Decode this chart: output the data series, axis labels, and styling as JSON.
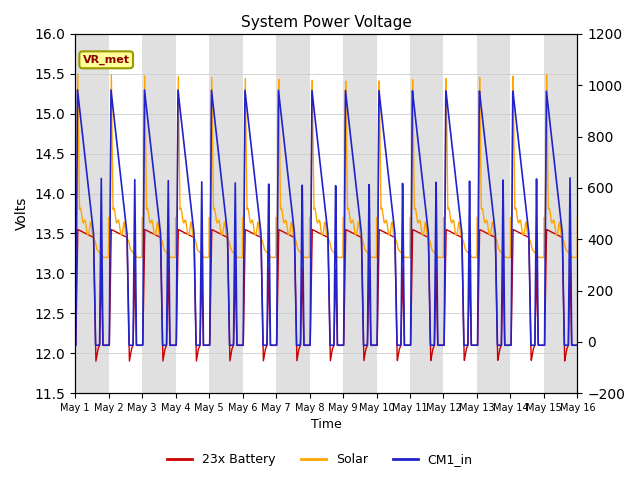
{
  "title": "System Power Voltage",
  "xlabel": "Time",
  "ylabel": "Volts",
  "ylim_left": [
    11.5,
    16.0
  ],
  "ylim_right": [
    -200,
    1200
  ],
  "yticks_left": [
    11.5,
    12.0,
    12.5,
    13.0,
    13.5,
    14.0,
    14.5,
    15.0,
    15.5,
    16.0
  ],
  "yticks_right": [
    -200,
    0,
    200,
    400,
    600,
    800,
    1000,
    1200
  ],
  "num_cycles": 15,
  "annotation_text": "VR_met",
  "colors": {
    "battery": "#CC0000",
    "solar": "#FFA500",
    "cm1": "#2222CC",
    "annotation_bg": "#FFFF99",
    "annotation_border": "#999900"
  },
  "legend_labels": [
    "23x Battery",
    "Solar",
    "CM1_in"
  ],
  "shaded_regions": true,
  "figsize": [
    6.4,
    4.8
  ],
  "dpi": 100
}
